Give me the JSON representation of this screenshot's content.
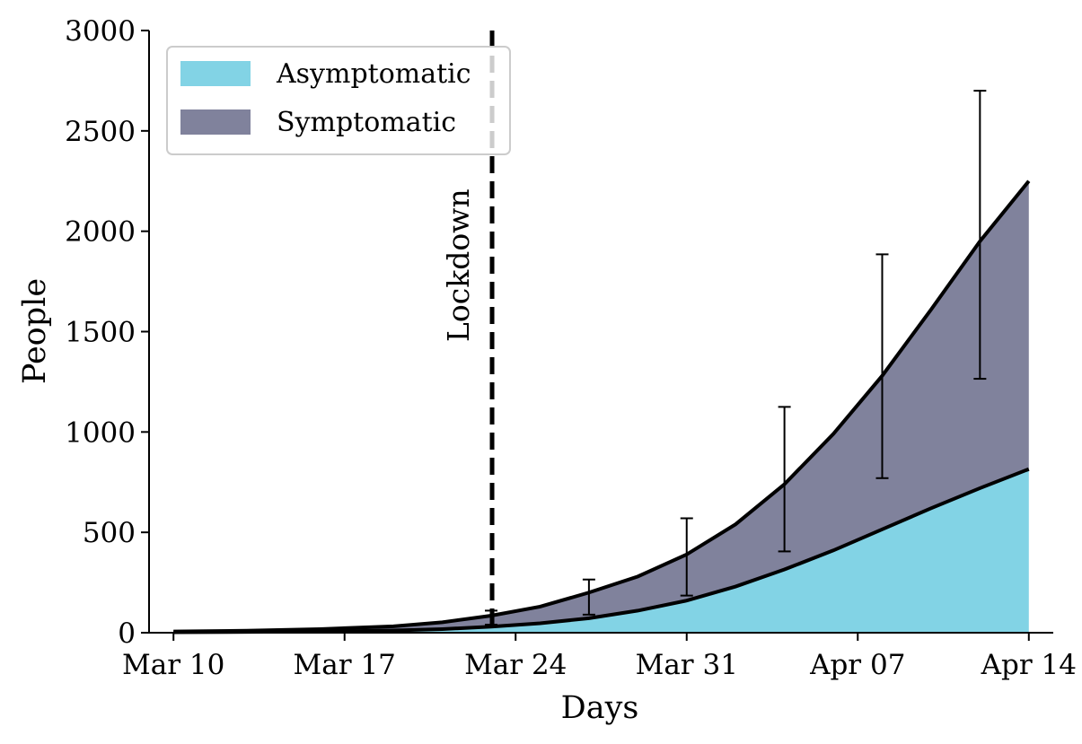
{
  "chart_data": {
    "type": "area",
    "stacked": true,
    "xlabel": "Days",
    "ylabel": "People",
    "ylim": [
      0,
      3000
    ],
    "yticks": [
      0,
      500,
      1000,
      1500,
      2000,
      2500,
      3000
    ],
    "ytick_labels": [
      "0",
      "500",
      "1000",
      "1500",
      "2000",
      "2500",
      "3000"
    ],
    "xlim": [
      "2020-03-09",
      "2020-04-15"
    ],
    "xticks": [
      "2020-03-10",
      "2020-03-17",
      "2020-03-24",
      "2020-03-31",
      "2020-04-07",
      "2020-04-14"
    ],
    "xtick_labels": [
      "Mar 10",
      "Mar 17",
      "Mar 24",
      "Mar 31",
      "Apr 07",
      "Apr 14"
    ],
    "grid": false,
    "legend": {
      "placement": "top-left",
      "entries": [
        "Asymptomatic",
        "Symptomatic"
      ]
    },
    "x": [
      "2020-03-10",
      "2020-03-13",
      "2020-03-16",
      "2020-03-19",
      "2020-03-21",
      "2020-03-23",
      "2020-03-25",
      "2020-03-27",
      "2020-03-29",
      "2020-03-31",
      "2020-04-02",
      "2020-04-04",
      "2020-04-06",
      "2020-04-08",
      "2020-04-10",
      "2020-04-12",
      "2020-04-14"
    ],
    "series": [
      {
        "name": "Asymptomatic",
        "color": "#82d3e5",
        "values": [
          2,
          4,
          6,
          11,
          18,
          30,
          47,
          72,
          110,
          160,
          230,
          315,
          410,
          515,
          620,
          720,
          815
        ]
      },
      {
        "name": "Symptomatic",
        "color": "#80829c",
        "cumulative_values": [
          6,
          10,
          18,
          32,
          52,
          85,
          130,
          200,
          280,
          390,
          540,
          740,
          990,
          1280,
          1610,
          1950,
          2250
        ]
      }
    ],
    "error_bars": [
      {
        "x": "2020-03-23",
        "low": 40,
        "high": 110
      },
      {
        "x": "2020-03-27",
        "low": 90,
        "high": 265
      },
      {
        "x": "2020-03-31",
        "low": 185,
        "high": 570
      },
      {
        "x": "2020-04-04",
        "low": 405,
        "high": 1125
      },
      {
        "x": "2020-04-08",
        "low": 770,
        "high": 1885
      },
      {
        "x": "2020-04-12",
        "low": 1265,
        "high": 2700
      }
    ],
    "annotations": [
      {
        "text": "Lockdown",
        "x": "2020-03-23",
        "style": "vertical-dashed-line"
      }
    ]
  }
}
